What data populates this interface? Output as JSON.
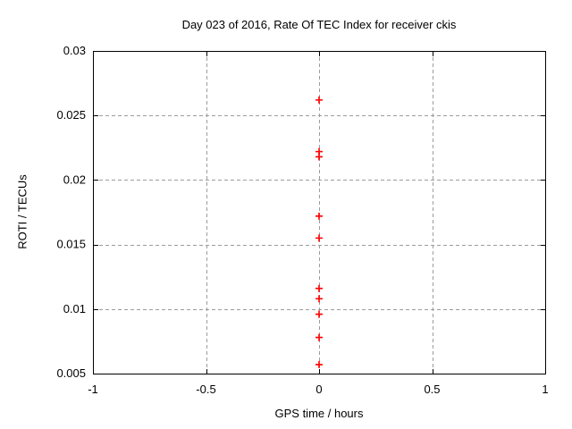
{
  "chart_data": {
    "type": "scatter",
    "title": "Day 023 of 2016, Rate Of TEC Index for receiver ckis",
    "xlabel": "GPS time / hours",
    "ylabel": "ROTI / TECUs",
    "xlim": [
      -1,
      1
    ],
    "ylim": [
      0.005,
      0.03
    ],
    "grid": true,
    "xticks": [
      {
        "v": -1,
        "label": "-1"
      },
      {
        "v": -0.5,
        "label": "-0.5"
      },
      {
        "v": 0,
        "label": "0"
      },
      {
        "v": 0.5,
        "label": "0.5"
      },
      {
        "v": 1,
        "label": "1"
      }
    ],
    "yticks": [
      {
        "v": 0.005,
        "label": "0.005"
      },
      {
        "v": 0.01,
        "label": "0.01"
      },
      {
        "v": 0.015,
        "label": "0.015"
      },
      {
        "v": 0.02,
        "label": "0.02"
      },
      {
        "v": 0.025,
        "label": "0.025"
      },
      {
        "v": 0.03,
        "label": "0.03"
      }
    ],
    "series": [
      {
        "name": "rate-of-tec-index",
        "marker": "plus",
        "color": "#ff0000",
        "x": [
          0,
          0,
          0,
          0,
          0,
          0,
          0,
          0,
          0,
          0
        ],
        "y": [
          0.0262,
          0.0222,
          0.0218,
          0.0172,
          0.0155,
          0.0116,
          0.0108,
          0.0096,
          0.0078,
          0.0057
        ]
      }
    ]
  },
  "style": {
    "background": "#ffffff",
    "axis_color": "#000000",
    "text_color": "#000000",
    "grid_color": "#9c9c9c",
    "marker_color": "#ff0000"
  }
}
